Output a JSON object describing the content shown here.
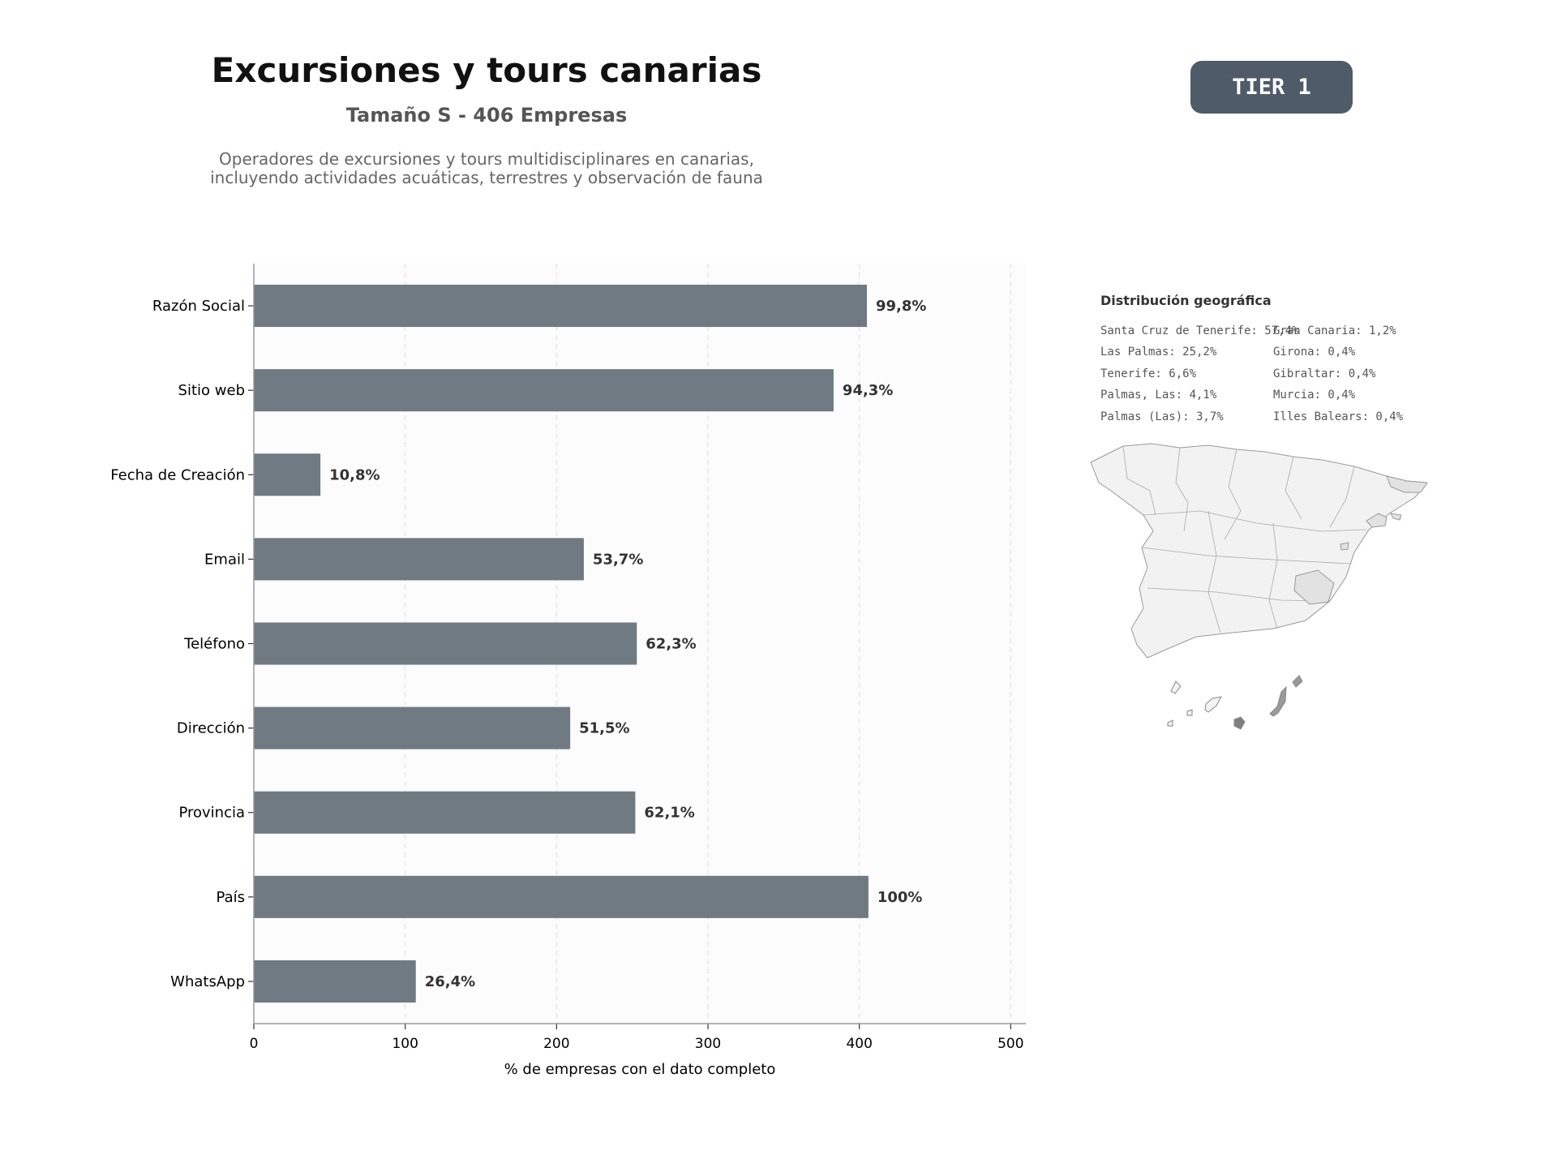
{
  "header": {
    "title": "Excursiones y tours canarias",
    "subtitle": "Tamaño S - 406 Empresas",
    "description_line1": "Operadores de excursiones y tours multidisciplinares en canarias,",
    "description_line2": "incluyendo actividades acuáticas, terrestres y observación de fauna",
    "tier": "TIER 1"
  },
  "chart_data": {
    "type": "bar",
    "orientation": "horizontal",
    "categories": [
      "Razón Social",
      "Sitio web",
      "Fecha de Creación",
      "Email",
      "Teléfono",
      "Dirección",
      "Provincia",
      "País",
      "WhatsApp"
    ],
    "values": [
      405,
      383,
      44,
      218,
      253,
      209,
      252,
      406,
      107
    ],
    "labels": [
      "99,8%",
      "94,3%",
      "10,8%",
      "53,7%",
      "62,3%",
      "51,5%",
      "62,1%",
      "100%",
      "26,4%"
    ],
    "xlabel": "% de empresas con el dato completo",
    "xlim": [
      0,
      510
    ],
    "xticks": [
      0,
      100,
      200,
      300,
      400,
      500
    ],
    "grid": "vertical-dashed",
    "bar_color": "#6f7a83"
  },
  "geo": {
    "title": "Distribución geográfica",
    "col1": [
      "Santa Cruz de Tenerife: 57,4%",
      "Las Palmas: 25,2%",
      "Tenerife: 6,6%",
      "Palmas, Las: 4,1%",
      "Palmas (Las): 3,7%"
    ],
    "col2": [
      "Gran Canaria: 1,2%",
      "Girona: 0,4%",
      "Gibraltar: 0,4%",
      "Murcia: 0,4%",
      "Illes Balears: 0,4%"
    ]
  }
}
